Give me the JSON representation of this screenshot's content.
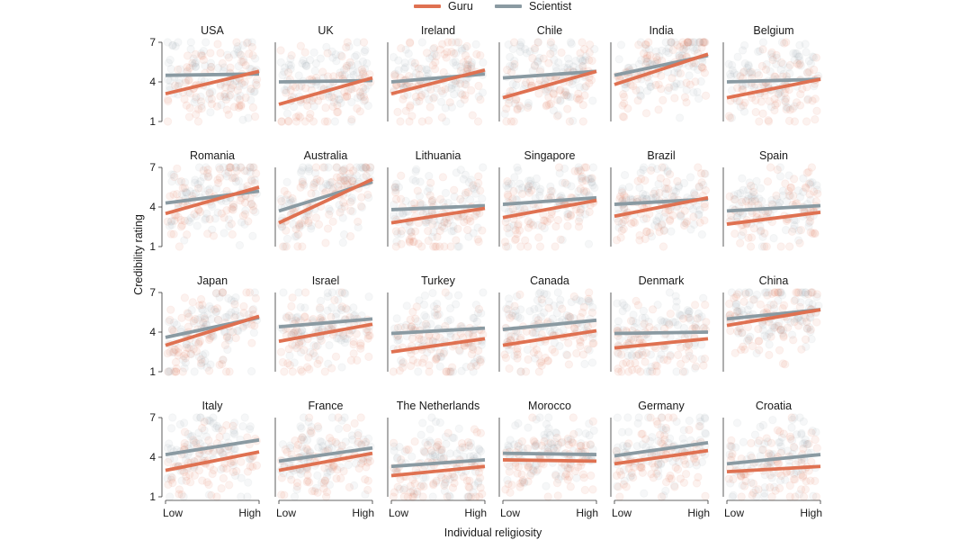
{
  "legend": [
    {
      "name": "Guru",
      "color": "#df7151"
    },
    {
      "name": "Scientist",
      "color": "#8a9aa2"
    }
  ],
  "axis": {
    "ylabel": "Credibility rating",
    "xlabel": "Individual religiosity",
    "yticks": [
      "1",
      "4",
      "7"
    ],
    "xticks": [
      "Low",
      "High"
    ]
  },
  "chart_data": {
    "type": "scatter",
    "title": "",
    "xlabel": "Individual religiosity",
    "ylabel": "Credibility rating",
    "xlim": [
      "Low",
      "High"
    ],
    "ylim": [
      1,
      7
    ],
    "series_colors": {
      "Guru": "#df7151",
      "Scientist": "#8a9aa2"
    },
    "panels": [
      {
        "country": "USA",
        "guru": [
          3.1,
          4.8
        ],
        "scientist": [
          4.5,
          4.6
        ]
      },
      {
        "country": "UK",
        "guru": [
          2.3,
          4.3
        ],
        "scientist": [
          4.0,
          4.1
        ]
      },
      {
        "country": "Ireland",
        "guru": [
          3.1,
          4.9
        ],
        "scientist": [
          4.0,
          4.6
        ]
      },
      {
        "country": "Chile",
        "guru": [
          2.8,
          4.8
        ],
        "scientist": [
          4.3,
          4.8
        ]
      },
      {
        "country": "India",
        "guru": [
          3.8,
          6.1
        ],
        "scientist": [
          4.5,
          6.0
        ]
      },
      {
        "country": "Belgium",
        "guru": [
          2.8,
          4.2
        ],
        "scientist": [
          4.0,
          4.2
        ]
      },
      {
        "country": "Romania",
        "guru": [
          3.5,
          5.5
        ],
        "scientist": [
          4.3,
          5.2
        ]
      },
      {
        "country": "Australia",
        "guru": [
          2.8,
          6.1
        ],
        "scientist": [
          3.7,
          5.9
        ]
      },
      {
        "country": "Lithuania",
        "guru": [
          2.8,
          3.9
        ],
        "scientist": [
          3.8,
          4.1
        ]
      },
      {
        "country": "Singapore",
        "guru": [
          3.2,
          4.5
        ],
        "scientist": [
          4.2,
          4.7
        ]
      },
      {
        "country": "Brazil",
        "guru": [
          3.3,
          4.7
        ],
        "scientist": [
          4.2,
          4.6
        ]
      },
      {
        "country": "Spain",
        "guru": [
          2.7,
          3.6
        ],
        "scientist": [
          3.7,
          4.1
        ]
      },
      {
        "country": "Japan",
        "guru": [
          3.0,
          5.2
        ],
        "scientist": [
          3.6,
          5.1
        ]
      },
      {
        "country": "Israel",
        "guru": [
          3.3,
          4.6
        ],
        "scientist": [
          4.4,
          5.0
        ]
      },
      {
        "country": "Turkey",
        "guru": [
          2.5,
          3.5
        ],
        "scientist": [
          3.9,
          4.3
        ]
      },
      {
        "country": "Canada",
        "guru": [
          3.0,
          4.1
        ],
        "scientist": [
          4.2,
          4.9
        ]
      },
      {
        "country": "Denmark",
        "guru": [
          2.8,
          3.5
        ],
        "scientist": [
          3.9,
          4.0
        ]
      },
      {
        "country": "China",
        "guru": [
          4.5,
          5.7
        ],
        "scientist": [
          5.0,
          5.7
        ]
      },
      {
        "country": "Italy",
        "guru": [
          3.0,
          4.4
        ],
        "scientist": [
          4.2,
          5.3
        ]
      },
      {
        "country": "France",
        "guru": [
          3.0,
          4.3
        ],
        "scientist": [
          3.7,
          4.7
        ]
      },
      {
        "country": "The Netherlands",
        "guru": [
          2.6,
          3.3
        ],
        "scientist": [
          3.3,
          3.8
        ]
      },
      {
        "country": "Morocco",
        "guru": [
          3.8,
          3.7
        ],
        "scientist": [
          4.3,
          4.2
        ]
      },
      {
        "country": "Germany",
        "guru": [
          3.5,
          4.5
        ],
        "scientist": [
          4.1,
          5.1
        ]
      },
      {
        "country": "Croatia",
        "guru": [
          2.9,
          3.3
        ],
        "scientist": [
          3.5,
          4.2
        ]
      }
    ]
  }
}
